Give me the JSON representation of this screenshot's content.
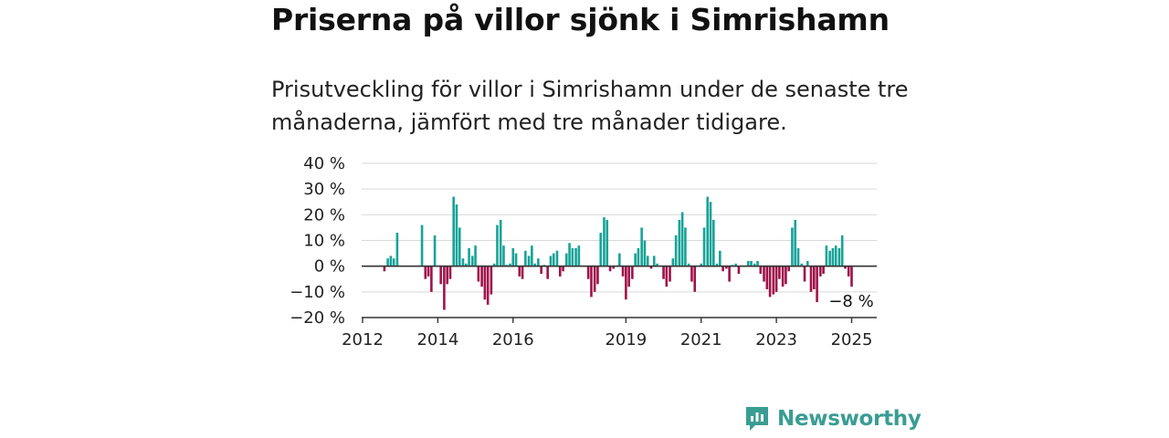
{
  "header": {
    "title": "Priserna på villor sjönk i Simrishamn",
    "subtitle": "Prisutveckling för villor i Simrishamn under de senaste tre månaderna, jämfört med tre månader tidigare."
  },
  "brand": {
    "name": "Newsworthy",
    "logo_icon": "newsworthy-chart-icon",
    "color": "#3a9d93"
  },
  "chart_data": {
    "type": "bar",
    "xlim": [
      2012,
      2025.6
    ],
    "ylim": [
      -20,
      40
    ],
    "yticks": [
      {
        "value": 40,
        "label": "40 %"
      },
      {
        "value": 30,
        "label": "30 %"
      },
      {
        "value": 20,
        "label": "20 %"
      },
      {
        "value": 10,
        "label": "10 %"
      },
      {
        "value": 0,
        "label": "0 %"
      },
      {
        "value": -10,
        "label": "−10 %"
      },
      {
        "value": -20,
        "label": "−20 %"
      }
    ],
    "xticks": [
      {
        "value": 2012,
        "label": "2012"
      },
      {
        "value": 2014,
        "label": "2014"
      },
      {
        "value": 2016,
        "label": "2016"
      },
      {
        "value": 2019,
        "label": "2019"
      },
      {
        "value": 2021,
        "label": "2021"
      },
      {
        "value": 2023,
        "label": "2023"
      },
      {
        "value": 2025,
        "label": "2025"
      }
    ],
    "colors": {
      "positive": "#17a398",
      "negative": "#a0124a",
      "grid": "#d9d9d9",
      "axis": "#333333"
    },
    "grid": true,
    "annotation": {
      "label": "−8 %"
    },
    "points": [
      {
        "x": 2012.58,
        "y": -2
      },
      {
        "x": 2012.67,
        "y": 3
      },
      {
        "x": 2012.75,
        "y": 4
      },
      {
        "x": 2012.83,
        "y": 3
      },
      {
        "x": 2012.92,
        "y": 13
      },
      {
        "x": 2013.58,
        "y": 16
      },
      {
        "x": 2013.67,
        "y": -5
      },
      {
        "x": 2013.75,
        "y": -4
      },
      {
        "x": 2013.83,
        "y": -10
      },
      {
        "x": 2013.92,
        "y": 12
      },
      {
        "x": 2014.08,
        "y": -7
      },
      {
        "x": 2014.17,
        "y": -17
      },
      {
        "x": 2014.25,
        "y": -7
      },
      {
        "x": 2014.33,
        "y": -5
      },
      {
        "x": 2014.42,
        "y": 27
      },
      {
        "x": 2014.5,
        "y": 24
      },
      {
        "x": 2014.58,
        "y": 15
      },
      {
        "x": 2014.67,
        "y": 3
      },
      {
        "x": 2014.75,
        "y": 1
      },
      {
        "x": 2014.83,
        "y": 7
      },
      {
        "x": 2014.92,
        "y": 4
      },
      {
        "x": 2015.0,
        "y": 8
      },
      {
        "x": 2015.08,
        "y": -6
      },
      {
        "x": 2015.17,
        "y": -8
      },
      {
        "x": 2015.25,
        "y": -13
      },
      {
        "x": 2015.33,
        "y": -15
      },
      {
        "x": 2015.42,
        "y": -11
      },
      {
        "x": 2015.5,
        "y": 1
      },
      {
        "x": 2015.58,
        "y": 16
      },
      {
        "x": 2015.67,
        "y": 18
      },
      {
        "x": 2015.75,
        "y": 8
      },
      {
        "x": 2015.83,
        "y": 0.5
      },
      {
        "x": 2015.92,
        "y": 1
      },
      {
        "x": 2016.0,
        "y": 7
      },
      {
        "x": 2016.08,
        "y": 5
      },
      {
        "x": 2016.17,
        "y": -4
      },
      {
        "x": 2016.25,
        "y": -5
      },
      {
        "x": 2016.33,
        "y": 6
      },
      {
        "x": 2016.42,
        "y": 4
      },
      {
        "x": 2016.5,
        "y": 8
      },
      {
        "x": 2016.58,
        "y": 1
      },
      {
        "x": 2016.67,
        "y": 3
      },
      {
        "x": 2016.75,
        "y": -3
      },
      {
        "x": 2016.83,
        "y": 0.5
      },
      {
        "x": 2016.92,
        "y": -5
      },
      {
        "x": 2017.0,
        "y": 4
      },
      {
        "x": 2017.08,
        "y": 5
      },
      {
        "x": 2017.17,
        "y": 6
      },
      {
        "x": 2017.25,
        "y": -4
      },
      {
        "x": 2017.33,
        "y": -2
      },
      {
        "x": 2017.42,
        "y": 5
      },
      {
        "x": 2017.5,
        "y": 9
      },
      {
        "x": 2017.58,
        "y": 7
      },
      {
        "x": 2017.67,
        "y": 7
      },
      {
        "x": 2017.75,
        "y": 8
      },
      {
        "x": 2018.0,
        "y": -5
      },
      {
        "x": 2018.08,
        "y": -12
      },
      {
        "x": 2018.17,
        "y": -10
      },
      {
        "x": 2018.25,
        "y": -7
      },
      {
        "x": 2018.33,
        "y": 13
      },
      {
        "x": 2018.42,
        "y": 19
      },
      {
        "x": 2018.5,
        "y": 18
      },
      {
        "x": 2018.58,
        "y": -2
      },
      {
        "x": 2018.67,
        "y": -1
      },
      {
        "x": 2018.83,
        "y": 5
      },
      {
        "x": 2018.92,
        "y": -4
      },
      {
        "x": 2019.0,
        "y": -13
      },
      {
        "x": 2019.08,
        "y": -8
      },
      {
        "x": 2019.17,
        "y": -5
      },
      {
        "x": 2019.25,
        "y": 5
      },
      {
        "x": 2019.33,
        "y": 7
      },
      {
        "x": 2019.42,
        "y": 15
      },
      {
        "x": 2019.5,
        "y": 10
      },
      {
        "x": 2019.58,
        "y": 4
      },
      {
        "x": 2019.67,
        "y": -1
      },
      {
        "x": 2019.75,
        "y": 4
      },
      {
        "x": 2019.83,
        "y": 1
      },
      {
        "x": 2020.0,
        "y": -5
      },
      {
        "x": 2020.08,
        "y": -8
      },
      {
        "x": 2020.17,
        "y": -6
      },
      {
        "x": 2020.25,
        "y": 3
      },
      {
        "x": 2020.33,
        "y": 12
      },
      {
        "x": 2020.42,
        "y": 18
      },
      {
        "x": 2020.5,
        "y": 21
      },
      {
        "x": 2020.58,
        "y": 15
      },
      {
        "x": 2020.67,
        "y": 1
      },
      {
        "x": 2020.75,
        "y": -6
      },
      {
        "x": 2020.83,
        "y": -10
      },
      {
        "x": 2021.0,
        "y": 1
      },
      {
        "x": 2021.08,
        "y": 15
      },
      {
        "x": 2021.17,
        "y": 27
      },
      {
        "x": 2021.25,
        "y": 25
      },
      {
        "x": 2021.33,
        "y": 18
      },
      {
        "x": 2021.42,
        "y": 1
      },
      {
        "x": 2021.5,
        "y": 6
      },
      {
        "x": 2021.58,
        "y": -2
      },
      {
        "x": 2021.67,
        "y": -1
      },
      {
        "x": 2021.75,
        "y": -6
      },
      {
        "x": 2021.83,
        "y": 0.5
      },
      {
        "x": 2021.92,
        "y": 1
      },
      {
        "x": 2022.0,
        "y": -3
      },
      {
        "x": 2022.25,
        "y": 2
      },
      {
        "x": 2022.33,
        "y": 2
      },
      {
        "x": 2022.42,
        "y": 1
      },
      {
        "x": 2022.5,
        "y": 2
      },
      {
        "x": 2022.58,
        "y": -3
      },
      {
        "x": 2022.67,
        "y": -6
      },
      {
        "x": 2022.75,
        "y": -9
      },
      {
        "x": 2022.83,
        "y": -12
      },
      {
        "x": 2022.92,
        "y": -11
      },
      {
        "x": 2023.0,
        "y": -10
      },
      {
        "x": 2023.08,
        "y": -5
      },
      {
        "x": 2023.17,
        "y": -8
      },
      {
        "x": 2023.25,
        "y": -7
      },
      {
        "x": 2023.33,
        "y": -2
      },
      {
        "x": 2023.42,
        "y": 15
      },
      {
        "x": 2023.5,
        "y": 18
      },
      {
        "x": 2023.58,
        "y": 7
      },
      {
        "x": 2023.67,
        "y": 1
      },
      {
        "x": 2023.75,
        "y": -6
      },
      {
        "x": 2023.83,
        "y": 2
      },
      {
        "x": 2023.92,
        "y": -10
      },
      {
        "x": 2024.0,
        "y": -9
      },
      {
        "x": 2024.08,
        "y": -14
      },
      {
        "x": 2024.17,
        "y": -4
      },
      {
        "x": 2024.25,
        "y": -3
      },
      {
        "x": 2024.33,
        "y": 8
      },
      {
        "x": 2024.42,
        "y": 6
      },
      {
        "x": 2024.5,
        "y": 7
      },
      {
        "x": 2024.58,
        "y": 8
      },
      {
        "x": 2024.67,
        "y": 7
      },
      {
        "x": 2024.75,
        "y": 12
      },
      {
        "x": 2024.83,
        "y": -1
      },
      {
        "x": 2024.92,
        "y": -4
      },
      {
        "x": 2025.0,
        "y": -8
      }
    ]
  }
}
